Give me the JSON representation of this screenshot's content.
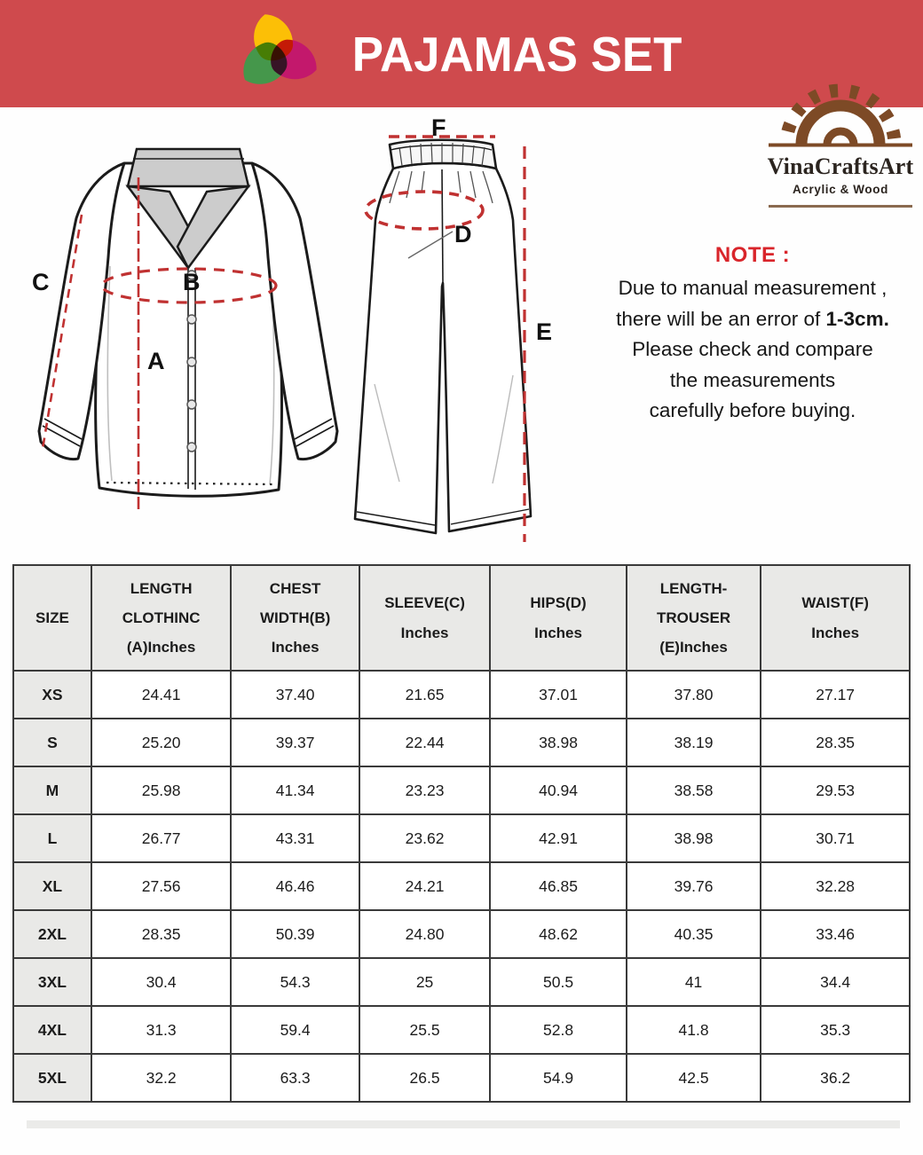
{
  "banner": {
    "title": "PAJAMAS SET",
    "bg_color": "#cf4a4d"
  },
  "brand": {
    "name": "VinaCraftsArt",
    "tagline": "Acrylic & Wood",
    "blade_color": "#7d4a26"
  },
  "note": {
    "heading": "NOTE :",
    "heading_color": "#d9252b",
    "line1": "Due to manual measurement ,",
    "line2_prefix": "there will be an error of ",
    "line2_bold": "1-3cm.",
    "line3": "Please check and compare",
    "line4": "the measurements",
    "line5": "carefully before buying."
  },
  "diagram": {
    "measure_line_color": "#c03131",
    "labels": {
      "a": "A",
      "b": "B",
      "c": "C",
      "d": "D",
      "e": "E",
      "f": "F"
    }
  },
  "table": {
    "headers": [
      "SIZE",
      "LENGTH\nCLOTHINC\n(A)Inches",
      "CHEST\nWIDTH(B)\nInches",
      "SLEEVE(C)\nInches",
      "HIPS(D)\nInches",
      "LENGTH-\nTROUSER\n(E)Inches",
      "WAIST(F)\nInches"
    ],
    "rows": [
      {
        "size": "XS",
        "values": [
          "24.41",
          "37.40",
          "21.65",
          "37.01",
          "37.80",
          "27.17"
        ]
      },
      {
        "size": "S",
        "values": [
          "25.20",
          "39.37",
          "22.44",
          "38.98",
          "38.19",
          "28.35"
        ]
      },
      {
        "size": "M",
        "values": [
          "25.98",
          "41.34",
          "23.23",
          "40.94",
          "38.58",
          "29.53"
        ]
      },
      {
        "size": "L",
        "values": [
          "26.77",
          "43.31",
          "23.62",
          "42.91",
          "38.98",
          "30.71"
        ]
      },
      {
        "size": "XL",
        "values": [
          "27.56",
          "46.46",
          "24.21",
          "46.85",
          "39.76",
          "32.28"
        ]
      },
      {
        "size": "2XL",
        "values": [
          "28.35",
          "50.39",
          "24.80",
          "48.62",
          "40.35",
          "33.46"
        ]
      },
      {
        "size": "3XL",
        "values": [
          "30.4",
          "54.3",
          "25",
          "50.5",
          "41",
          "34.4"
        ]
      },
      {
        "size": "4XL",
        "values": [
          "31.3",
          "59.4",
          "25.5",
          "52.8",
          "41.8",
          "35.3"
        ]
      },
      {
        "size": "5XL",
        "values": [
          "32.2",
          "63.3",
          "26.5",
          "54.9",
          "42.5",
          "36.2"
        ]
      }
    ]
  }
}
